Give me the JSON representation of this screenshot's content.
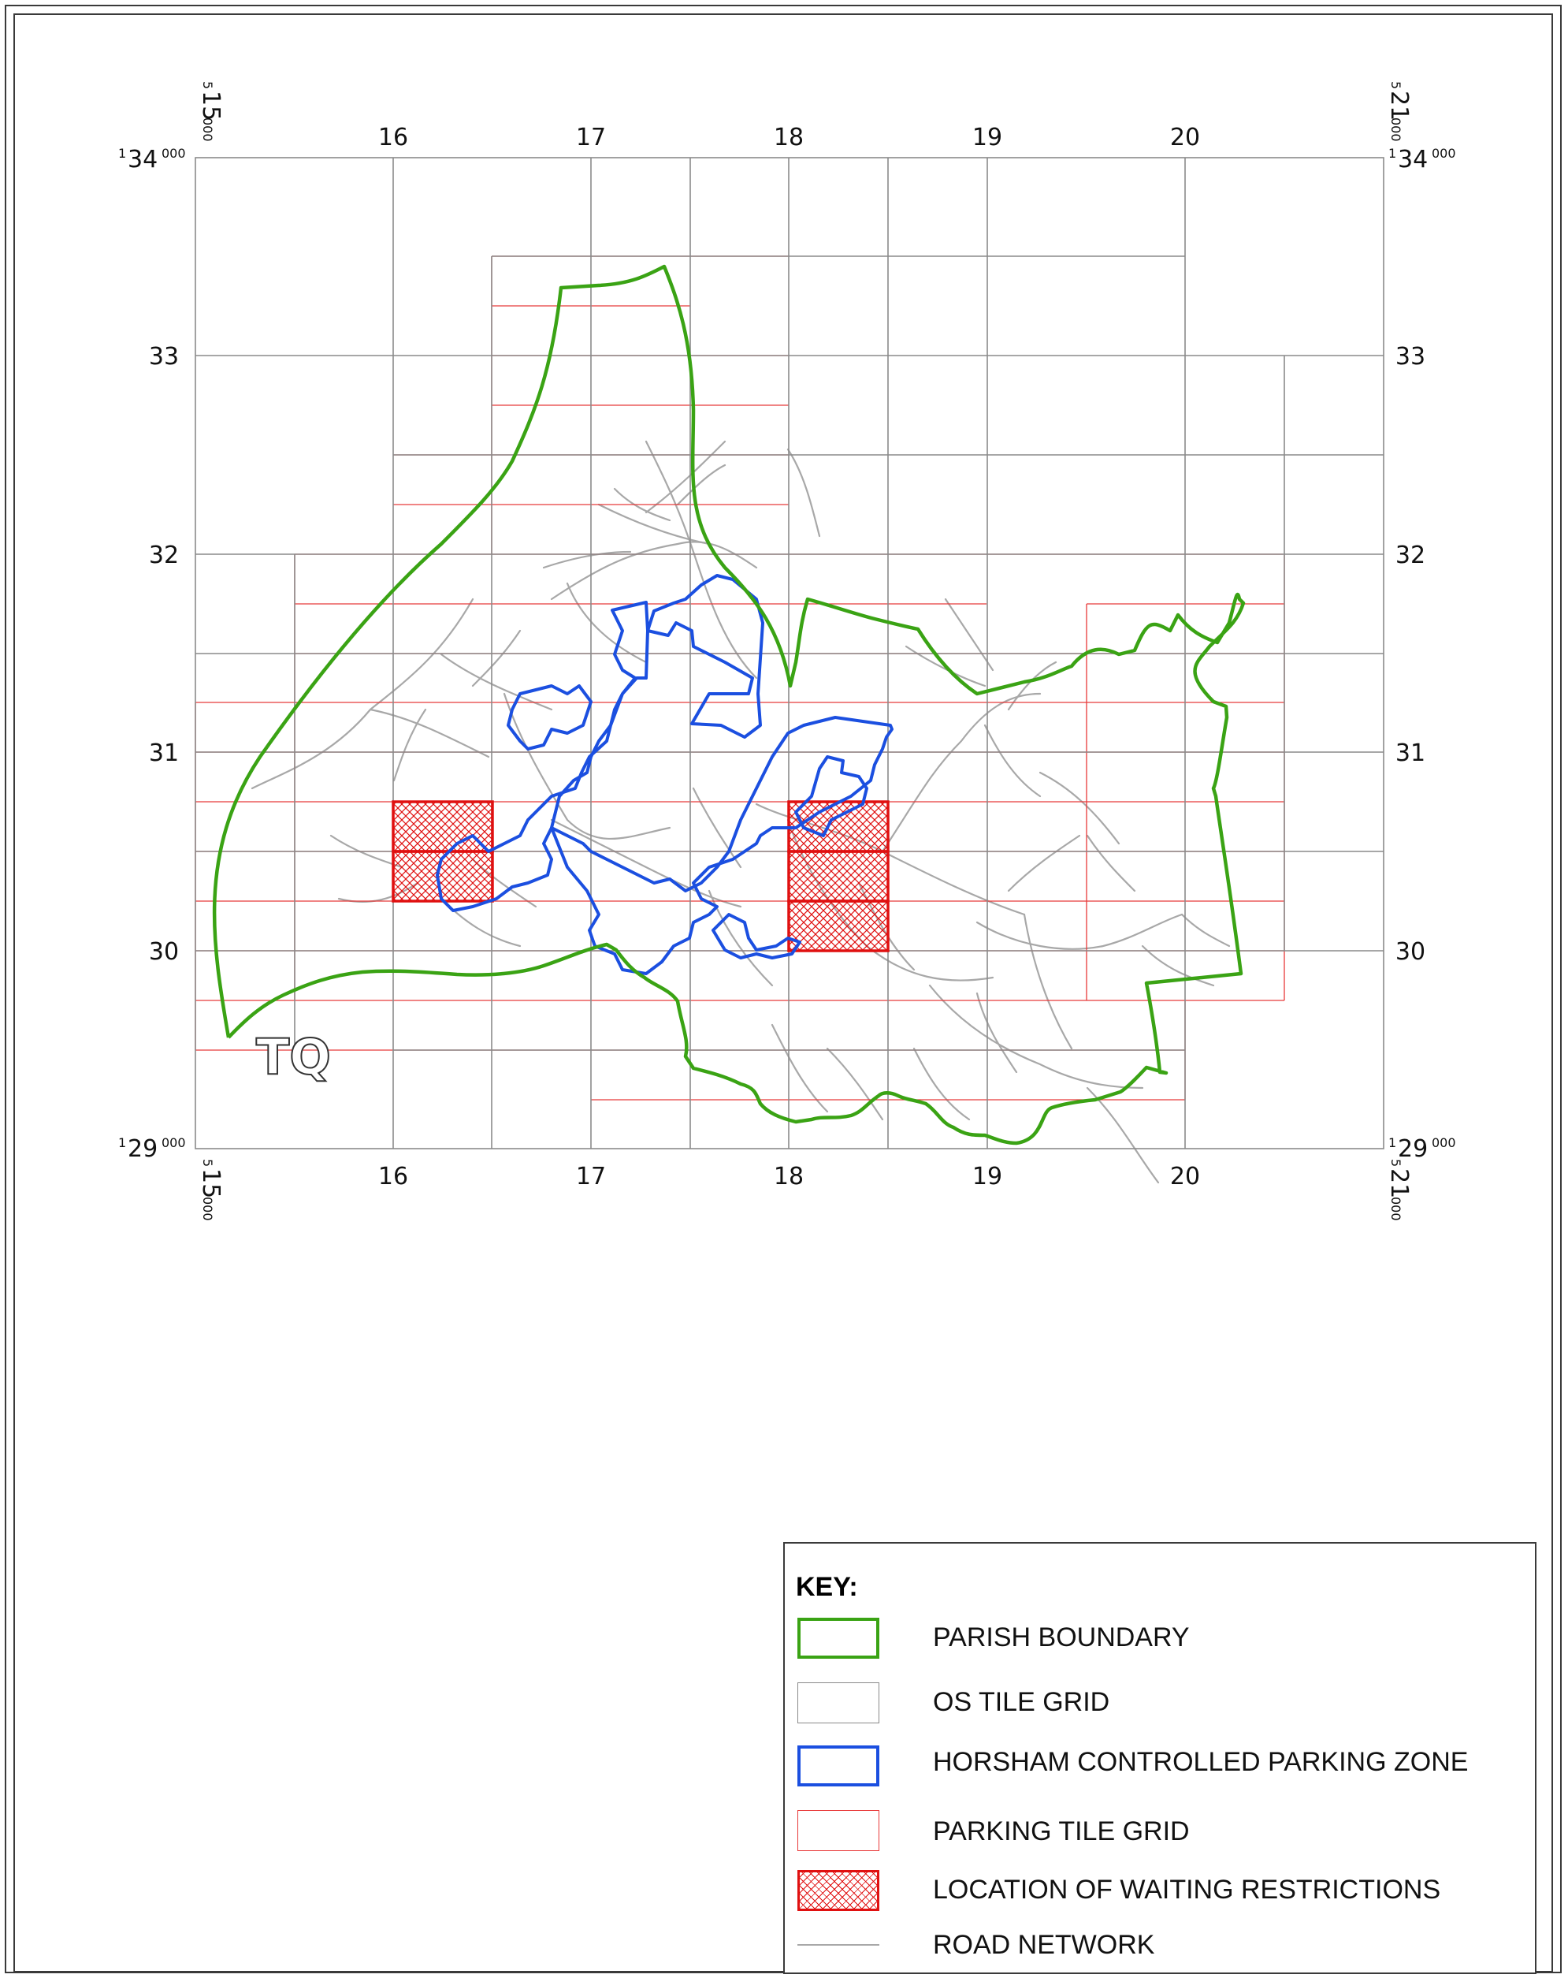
{
  "map": {
    "grid_letters": "TQ",
    "eastings": [
      "16",
      "17",
      "18",
      "19",
      "20"
    ],
    "northings": [
      "33",
      "32",
      "31",
      "30"
    ],
    "corner_labels": {
      "top_left_easting": {
        "prefix": "5",
        "main": "15",
        "suffix": "000"
      },
      "top_right_easting": {
        "prefix": "5",
        "main": "21",
        "suffix": "000"
      },
      "bottom_left_easting": {
        "prefix": "5",
        "main": "15",
        "suffix": "000"
      },
      "bottom_right_easting": {
        "prefix": "5",
        "main": "21",
        "suffix": "000"
      },
      "top_left_northing": {
        "prefix": "1",
        "main": "34",
        "suffix": "000"
      },
      "top_right_northing": {
        "prefix": "1",
        "main": "34",
        "suffix": "000"
      },
      "bottom_left_northing": {
        "prefix": "1",
        "main": "29",
        "suffix": "000"
      },
      "bottom_right_northing": {
        "prefix": "1",
        "main": "29",
        "suffix": "000"
      }
    },
    "colors": {
      "parish_boundary": "#3aa314",
      "os_tile_grid": "#8a8a8a",
      "controlled_parking_zone": "#1b4fe0",
      "parking_tile_grid": "#e83a3a",
      "waiting_restrictions": "#e01010",
      "road_network": "#a8a8a8"
    }
  },
  "key": {
    "title": "KEY:",
    "items": [
      {
        "label": "PARISH BOUNDARY",
        "symbol": "parish-boundary"
      },
      {
        "label": "OS TILE GRID",
        "symbol": "os-tile-grid"
      },
      {
        "label": "HORSHAM CONTROLLED PARKING ZONE",
        "symbol": "controlled-parking-zone"
      },
      {
        "label": "PARKING TILE GRID",
        "symbol": "parking-tile-grid"
      },
      {
        "label": "LOCATION OF WAITING RESTRICTIONS",
        "symbol": "waiting-restrictions"
      },
      {
        "label": "ROAD NETWORK",
        "symbol": "road-network"
      }
    ]
  }
}
